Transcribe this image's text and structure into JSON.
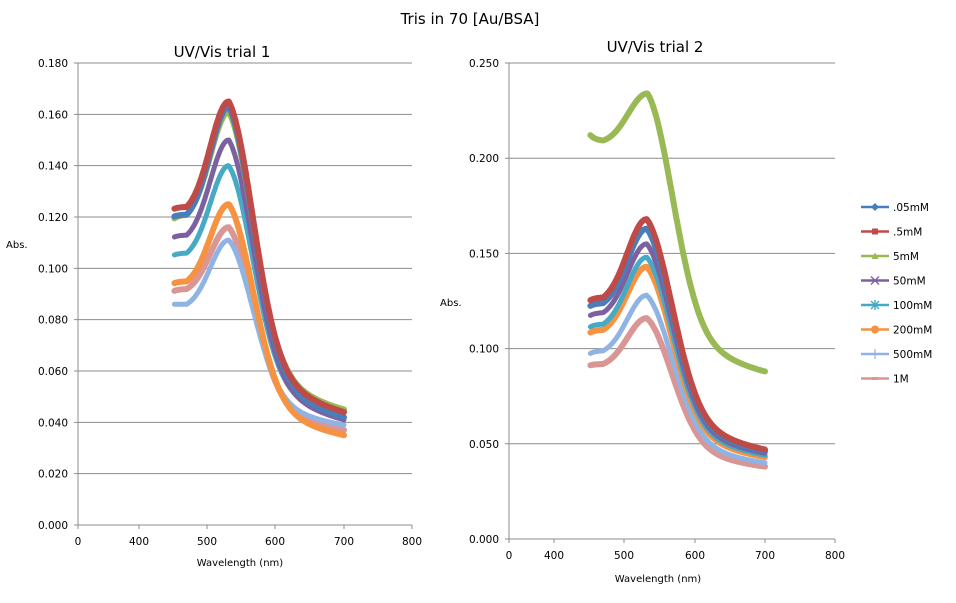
{
  "chart_data": {
    "title": "Tris in 70 [Au/BSA]",
    "type": "line",
    "legend": {
      "placement": "right",
      "entries": [
        {
          "name": ".05mM",
          "color": "#4a7ebb",
          "marker": "diamond"
        },
        {
          "name": ".5mM",
          "color": "#be4b48",
          "marker": "square"
        },
        {
          "name": "5mM",
          "color": "#98b954",
          "marker": "triangle"
        },
        {
          "name": "50mM",
          "color": "#7d60a0",
          "marker": "x"
        },
        {
          "name": "100mM",
          "color": "#46aac5",
          "marker": "star"
        },
        {
          "name": "200mM",
          "color": "#f69240",
          "marker": "circle"
        },
        {
          "name": "500mM",
          "color": "#8fb4e3",
          "marker": "plus"
        },
        {
          "name": "1M",
          "color": "#d99694",
          "marker": "dash"
        }
      ]
    },
    "charts": [
      {
        "title": "UV/Vis trial 1",
        "xlabel": "Wavelength (nm)",
        "ylabel": "Abs.",
        "xticks": [
          "0",
          "400",
          "500",
          "600",
          "700",
          "800"
        ],
        "yticks": [
          "0.000",
          "0.020",
          "0.040",
          "0.060",
          "0.080",
          "0.100",
          "0.120",
          "0.140",
          "0.160",
          "0.180"
        ],
        "ylim": [
          0,
          0.18
        ],
        "xrange_nm": [
          450,
          700
        ],
        "grid": true,
        "series": [
          {
            "name": ".05mM",
            "start": 0.12,
            "shoulder": 0.121,
            "peak": 0.163,
            "peak_nm": 532,
            "end": 0.042
          },
          {
            "name": ".5mM",
            "start": 0.123,
            "shoulder": 0.124,
            "peak": 0.165,
            "peak_nm": 532,
            "end": 0.044
          },
          {
            "name": "5mM",
            "start": 0.119,
            "shoulder": 0.121,
            "peak": 0.161,
            "peak_nm": 532,
            "end": 0.045
          },
          {
            "name": "50mM",
            "start": 0.112,
            "shoulder": 0.113,
            "peak": 0.15,
            "peak_nm": 532,
            "end": 0.041
          },
          {
            "name": "100mM",
            "start": 0.105,
            "shoulder": 0.106,
            "peak": 0.14,
            "peak_nm": 532,
            "end": 0.042
          },
          {
            "name": "200mM",
            "start": 0.094,
            "shoulder": 0.095,
            "peak": 0.125,
            "peak_nm": 532,
            "end": 0.035
          },
          {
            "name": "500mM",
            "start": 0.086,
            "shoulder": 0.086,
            "peak": 0.111,
            "peak_nm": 532,
            "end": 0.039
          },
          {
            "name": "1M",
            "start": 0.091,
            "shoulder": 0.092,
            "peak": 0.116,
            "peak_nm": 532,
            "end": 0.037
          }
        ]
      },
      {
        "title": "UV/Vis trial 2",
        "xlabel": "Wavelength (nm)",
        "ylabel": "Abs.",
        "xticks": [
          "0",
          "400",
          "500",
          "600",
          "700",
          "800"
        ],
        "yticks": [
          "0.000",
          "0.050",
          "0.100",
          "0.150",
          "0.200",
          "0.250"
        ],
        "ylim": [
          0,
          0.25
        ],
        "xrange_nm": [
          450,
          700
        ],
        "grid": true,
        "series": [
          {
            "name": ".05mM",
            "start": 0.122,
            "shoulder": 0.124,
            "peak": 0.163,
            "peak_nm": 532,
            "end": 0.046
          },
          {
            "name": ".5mM",
            "start": 0.125,
            "shoulder": 0.127,
            "peak": 0.168,
            "peak_nm": 532,
            "end": 0.047
          },
          {
            "name": "5mM",
            "start": 0.213,
            "shoulder": 0.209,
            "peak": 0.234,
            "peak_nm": 533,
            "end": 0.088
          },
          {
            "name": "50mM",
            "start": 0.117,
            "shoulder": 0.119,
            "peak": 0.155,
            "peak_nm": 532,
            "end": 0.045
          },
          {
            "name": "100mM",
            "start": 0.111,
            "shoulder": 0.113,
            "peak": 0.148,
            "peak_nm": 532,
            "end": 0.044
          },
          {
            "name": "200mM",
            "start": 0.108,
            "shoulder": 0.11,
            "peak": 0.143,
            "peak_nm": 532,
            "end": 0.043
          },
          {
            "name": "500mM",
            "start": 0.097,
            "shoulder": 0.099,
            "peak": 0.128,
            "peak_nm": 532,
            "end": 0.04
          },
          {
            "name": "1M",
            "start": 0.091,
            "shoulder": 0.092,
            "peak": 0.116,
            "peak_nm": 532,
            "end": 0.038
          }
        ]
      }
    ]
  }
}
